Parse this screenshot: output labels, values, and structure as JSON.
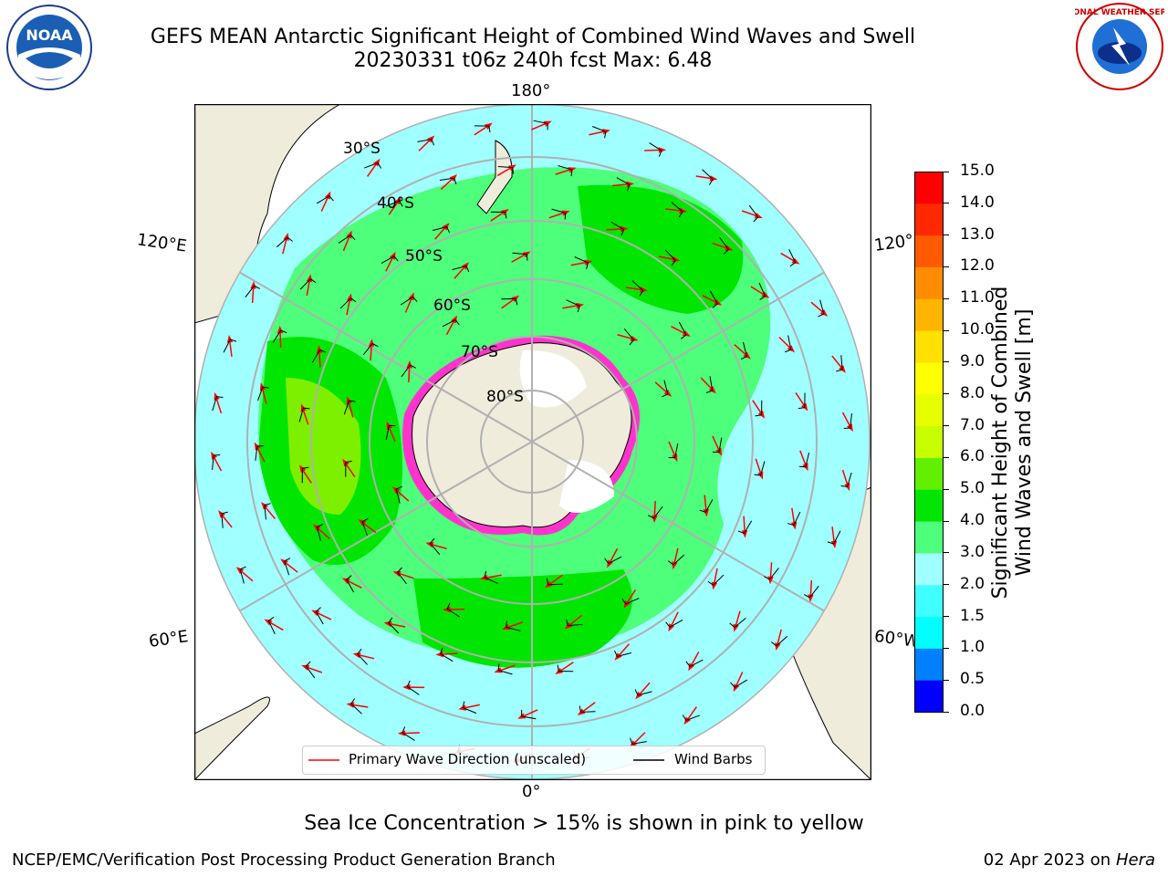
{
  "header": {
    "title_line1": "GEFS MEAN Antarctic Significant Height of Combined Wind Waves and Swell",
    "title_line2": "20230331 t06z 240h fcst   Max: 6.48"
  },
  "logos": {
    "noaa_text": "NOAA",
    "nws_text": "NATIONAL WEATHER SERVICE"
  },
  "map": {
    "projection": "south-polar-stereographic",
    "longitude_labels": {
      "top": "180°",
      "bottom": "0°",
      "left_upper": "120°E",
      "left_lower": "60°E",
      "right_upper": "120°",
      "right_lower": "60°W"
    },
    "latitude_labels": [
      "30°S",
      "40°S",
      "50°S",
      "60°S",
      "70°S",
      "80°S"
    ],
    "colors": {
      "land": "#efecdc",
      "ocean_low": "#a0ffff",
      "ocean_mid": "#4dff7a",
      "ocean_high": "#00e600",
      "ocean_peak": "#7df000",
      "ice_edge": "#ff33cc",
      "arrow": "#ff0000",
      "barb": "#000000"
    }
  },
  "legend": {
    "wave_label": "Primary Wave Direction (unscaled)",
    "barb_label": "Wind Barbs"
  },
  "colorbar": {
    "label_line1": "Significant Height of Combined",
    "label_line2": "Wind Waves and Swell [m]",
    "ticks": [
      "0.0",
      "0.5",
      "1.0",
      "1.5",
      "2.0",
      "3.0",
      "4.0",
      "5.0",
      "6.0",
      "7.0",
      "8.0",
      "9.0",
      "10.0",
      "11.0",
      "12.0",
      "13.0",
      "14.0",
      "15.0"
    ],
    "colors": [
      "#0000ff",
      "#0080ff",
      "#00ffff",
      "#40ffff",
      "#a0ffff",
      "#4dff7a",
      "#00e600",
      "#60f000",
      "#c8ff00",
      "#e6ff00",
      "#ffff00",
      "#ffe000",
      "#ffb400",
      "#ff8c00",
      "#ff5a00",
      "#ff2800",
      "#ff0000"
    ]
  },
  "footer": {
    "ice_note": "Sea Ice Concentration > 15% is shown in pink to yellow",
    "left": "NCEP/EMC/Verification Post Processing Product Generation Branch",
    "right_date": "02 Apr 2023 on ",
    "right_machine": "Hera"
  }
}
